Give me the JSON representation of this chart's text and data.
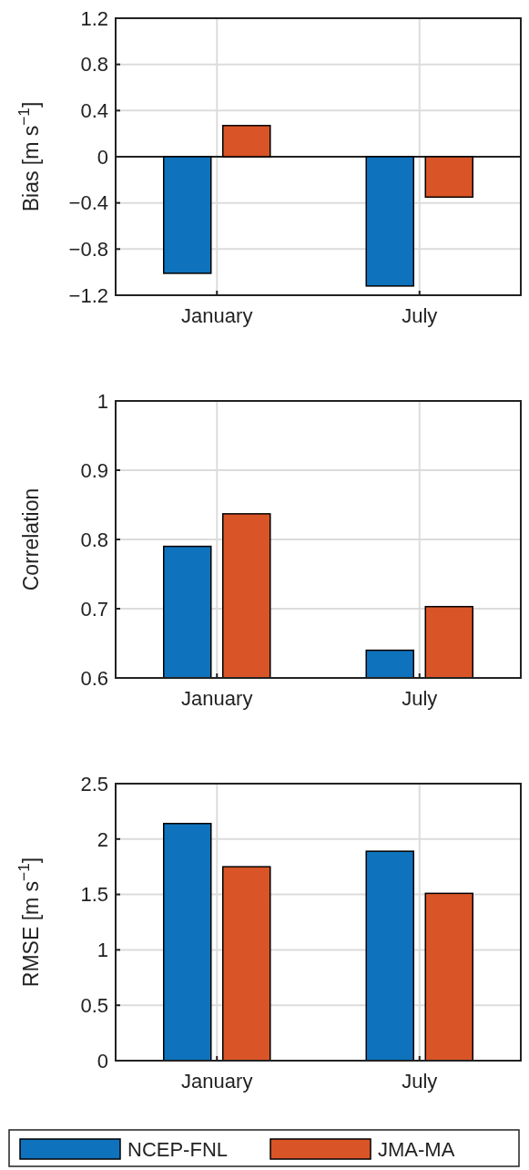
{
  "chart_data": [
    {
      "type": "bar",
      "ylabel": "Bias [m s$^{−1}$]",
      "categories": [
        "January",
        "July"
      ],
      "series": [
        {
          "color": "#0e72bd",
          "values": [
            -1.01,
            -1.12
          ]
        },
        {
          "color": "#d95427",
          "values": [
            0.27,
            -0.35
          ]
        }
      ],
      "ylim": [
        -1.2,
        1.2
      ],
      "yticks": [
        {
          "value": -1.2,
          "label": "−1.2"
        },
        {
          "value": -0.8,
          "label": "−0.8"
        },
        {
          "value": -0.4,
          "label": "−0.4"
        },
        0,
        0.4,
        0.8,
        1.2
      ],
      "grid": true
    },
    {
      "type": "bar",
      "ylabel": "Correlation",
      "categories": [
        "January",
        "July"
      ],
      "series": [
        {
          "color": "#0e72bd",
          "values": [
            0.79,
            0.64
          ]
        },
        {
          "color": "#d95427",
          "values": [
            0.837,
            0.703
          ]
        }
      ],
      "ylim": [
        0.6,
        1
      ],
      "yticks": [
        0.6,
        0.7,
        0.8,
        0.9,
        1
      ],
      "grid": true
    },
    {
      "type": "bar",
      "ylabel": "RMSE [m s$^{−1}$]",
      "categories": [
        "January",
        "July"
      ],
      "series": [
        {
          "name": "NCEP-FNL",
          "color": "#0e72bd",
          "values": [
            2.14,
            1.89
          ]
        },
        {
          "name": "JMA-MA",
          "color": "#d95427",
          "values": [
            1.75,
            1.51
          ]
        }
      ],
      "ylim": [
        0,
        2.5
      ],
      "yticks": [
        0,
        0.5,
        1,
        1.5,
        2,
        2.5
      ],
      "grid": true,
      "legend": "bottom"
    }
  ]
}
